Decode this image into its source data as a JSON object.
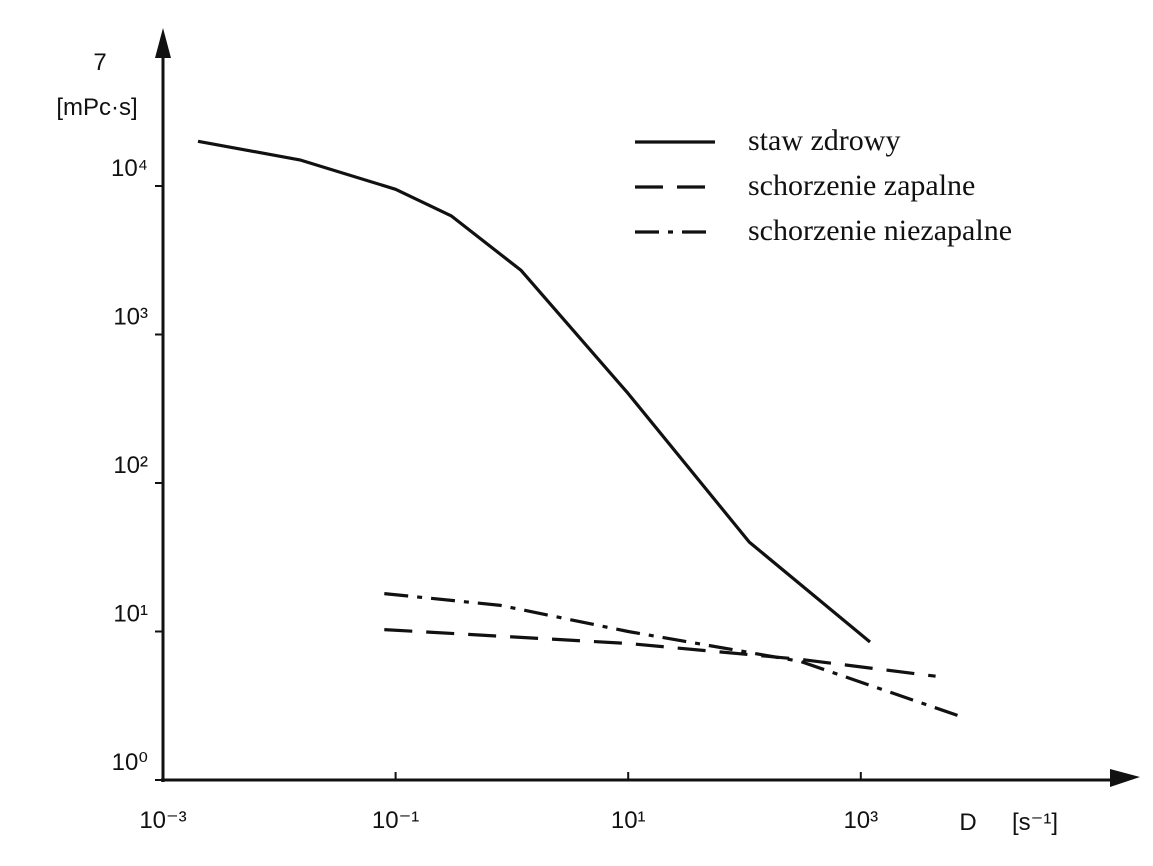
{
  "chart_data": {
    "type": "line",
    "y_label": "7",
    "y_unit": "[mPc·s]",
    "x_label": "D",
    "x_unit": "[s⁻¹]",
    "x_scale": "log",
    "y_scale": "log",
    "xlim": [
      0.001,
      200000
    ],
    "ylim": [
      1,
      100000
    ],
    "xticks": [
      {
        "value": 0.001,
        "label": "10⁻³"
      },
      {
        "value": 0.1,
        "label": "10⁻¹"
      },
      {
        "value": 10,
        "label": "10¹"
      },
      {
        "value": 1000,
        "label": "10³"
      }
    ],
    "yticks": [
      {
        "value": 1,
        "label": "10⁰"
      },
      {
        "value": 10,
        "label": "10¹"
      },
      {
        "value": 100,
        "label": "10²"
      },
      {
        "value": 1000,
        "label": "10³"
      },
      {
        "value": 10000,
        "label": "10⁴"
      }
    ],
    "legend": "upper right",
    "series": [
      {
        "name": "staw zdrowy",
        "color": "#111111",
        "dash": "solid",
        "x": [
          0.002,
          0.015,
          0.1,
          0.3,
          1.2,
          10,
          110,
          1200
        ],
        "values": [
          20000,
          15000,
          9500,
          6300,
          2700,
          400,
          40,
          8.5
        ]
      },
      {
        "name": "schorzenie zapalne",
        "color": "#111111",
        "dash": "dashed",
        "x": [
          0.08,
          10,
          300,
          4400
        ],
        "values": [
          10.3,
          8.3,
          6.5,
          5
        ]
      },
      {
        "name": "schorzenie niezapalne",
        "color": "#111111",
        "dash": "dashdot",
        "x": [
          0.08,
          0.8,
          10,
          300,
          7000
        ],
        "values": [
          18,
          15,
          10,
          6.3,
          2.7
        ]
      }
    ]
  }
}
